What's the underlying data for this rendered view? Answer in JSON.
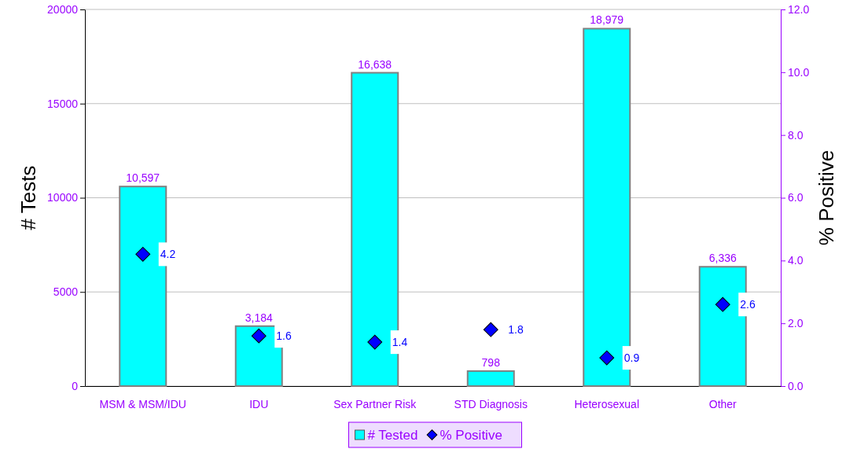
{
  "chart_data": {
    "type": "bar",
    "categories": [
      "MSM & MSM/IDU",
      "IDU",
      "Sex Partner Risk",
      "STD Diagnosis",
      "Heterosexual",
      "Other"
    ],
    "ylabel": "# Tests",
    "y2label": "% Positive",
    "ylim": [
      0,
      20000
    ],
    "yticks": [
      0,
      5000,
      10000,
      15000,
      20000
    ],
    "y2lim": [
      0,
      12
    ],
    "y2ticks": [
      {
        "value": 0,
        "label": "0.0"
      },
      {
        "value": 2,
        "label": "2.0"
      },
      {
        "value": 4,
        "label": "4.0"
      },
      {
        "value": 6,
        "label": "6.0"
      },
      {
        "value": 8,
        "label": "8.0"
      },
      {
        "value": 10,
        "label": "10.0"
      },
      {
        "value": 12,
        "label": "12.0"
      }
    ],
    "series": [
      {
        "name": "# Tested",
        "color": "#00ffff",
        "values": [
          10597,
          3184,
          16638,
          798,
          18979,
          6336
        ],
        "value_labels": [
          "10,597",
          "3,184",
          "16,638",
          "798",
          "18,979",
          "6,336"
        ]
      },
      {
        "name": "% Positive",
        "type": "scatter",
        "axis": "y2",
        "marker": "diamond",
        "color": "#0000ff",
        "values": [
          4.2,
          1.6,
          1.4,
          1.8,
          0.9,
          2.6
        ],
        "value_labels": [
          "4.2",
          "1.6",
          "1.4",
          "1.8",
          "0.9",
          "2.6"
        ]
      }
    ],
    "grid": "y",
    "legend": "bottom"
  }
}
